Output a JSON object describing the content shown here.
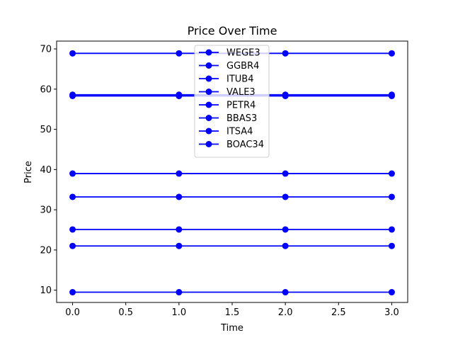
{
  "chart_data": {
    "type": "line",
    "title": "Price Over Time",
    "xlabel": "Time",
    "ylabel": "Price",
    "x": [
      0,
      1,
      2,
      3
    ],
    "xlim": [
      -0.15,
      3.15
    ],
    "ylim": [
      6.95,
      71.95
    ],
    "xticks": [
      0.0,
      0.5,
      1.0,
      1.5,
      2.0,
      2.5,
      3.0
    ],
    "xtick_labels": [
      "0.0",
      "0.5",
      "1.0",
      "1.5",
      "2.0",
      "2.5",
      "3.0"
    ],
    "yticks": [
      10,
      20,
      30,
      40,
      50,
      60,
      70
    ],
    "ytick_labels": [
      "10",
      "20",
      "30",
      "40",
      "50",
      "60",
      "70"
    ],
    "grid": false,
    "legend_position": "top-center",
    "line_color": "#0000ff",
    "series": [
      {
        "name": "WEGE3",
        "values": [
          68.9,
          68.9,
          68.9,
          68.9
        ]
      },
      {
        "name": "GGBR4",
        "values": [
          58.6,
          58.6,
          58.6,
          58.6
        ]
      },
      {
        "name": "ITUB4",
        "values": [
          58.3,
          58.3,
          58.3,
          58.3
        ]
      },
      {
        "name": "VALE3",
        "values": [
          39.0,
          39.0,
          39.0,
          39.0
        ]
      },
      {
        "name": "PETR4",
        "values": [
          33.2,
          33.2,
          33.2,
          33.2
        ]
      },
      {
        "name": "BBAS3",
        "values": [
          25.1,
          25.1,
          25.1,
          25.1
        ]
      },
      {
        "name": "ITSA4",
        "values": [
          21.0,
          21.0,
          21.0,
          21.0
        ]
      },
      {
        "name": "BOAC34",
        "values": [
          9.5,
          9.5,
          9.5,
          9.5
        ]
      }
    ]
  }
}
